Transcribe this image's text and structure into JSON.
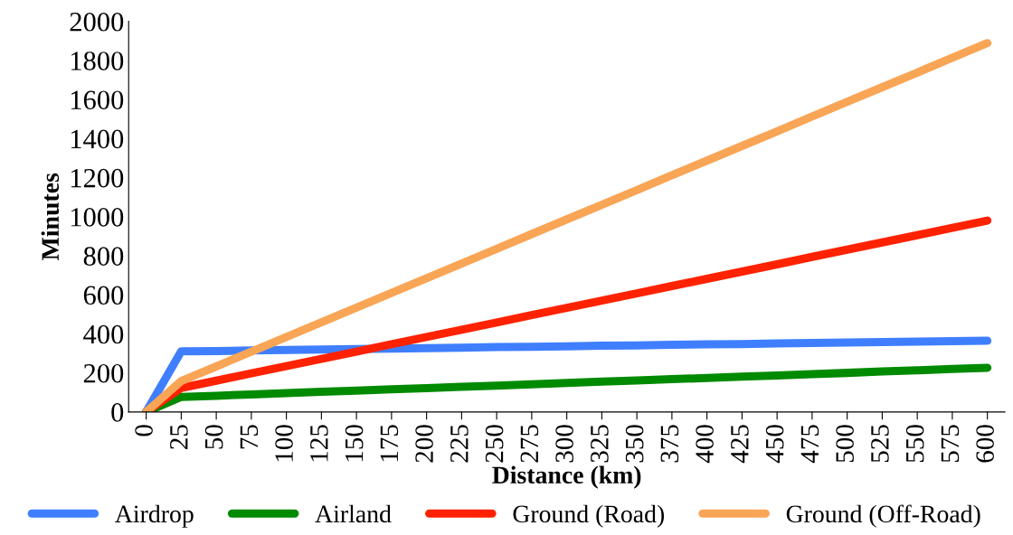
{
  "chart_data": {
    "type": "line",
    "xlabel": "Distance (km)",
    "ylabel": "Minutes",
    "categories": [
      "0",
      "25",
      "50",
      "75",
      "100",
      "125",
      "150",
      "175",
      "200",
      "225",
      "250",
      "275",
      "300",
      "325",
      "350",
      "375",
      "400",
      "425",
      "450",
      "475",
      "500",
      "525",
      "550",
      "575",
      "600"
    ],
    "ylim": [
      0,
      2000
    ],
    "yticks": [
      0,
      200,
      400,
      600,
      800,
      1000,
      1200,
      1400,
      1600,
      1800,
      2000
    ],
    "grid": false,
    "legend": "bottom",
    "marker": "none",
    "line_style": "solid",
    "series": [
      {
        "name": "Airdrop",
        "color": "#3f7fff",
        "values": [
          0,
          310,
          312,
          315,
          317,
          320,
          322,
          324,
          327,
          329,
          332,
          334,
          336,
          339,
          341,
          344,
          346,
          348,
          351,
          353,
          356,
          358,
          360,
          363,
          365
        ]
      },
      {
        "name": "Airland",
        "color": "#008a00",
        "values": [
          0,
          77,
          83,
          90,
          96,
          103,
          109,
          116,
          122,
          129,
          135,
          142,
          148,
          155,
          161,
          168,
          174,
          181,
          187,
          194,
          200,
          207,
          213,
          220,
          226
        ]
      },
      {
        "name": "Ground (Road)",
        "color": "#ff2200",
        "values": [
          0,
          123,
          160,
          198,
          235,
          272,
          309,
          347,
          384,
          421,
          458,
          496,
          533,
          570,
          607,
          645,
          682,
          719,
          756,
          794,
          831,
          868,
          905,
          943,
          980
        ]
      },
      {
        "name": "Ground (Off-Road)",
        "color": "#f9a556",
        "values": [
          0,
          158,
          233,
          309,
          384,
          459,
          534,
          610,
          685,
          760,
          835,
          911,
          986,
          1061,
          1136,
          1212,
          1287,
          1362,
          1437,
          1513,
          1588,
          1663,
          1738,
          1814,
          1889
        ]
      }
    ]
  }
}
